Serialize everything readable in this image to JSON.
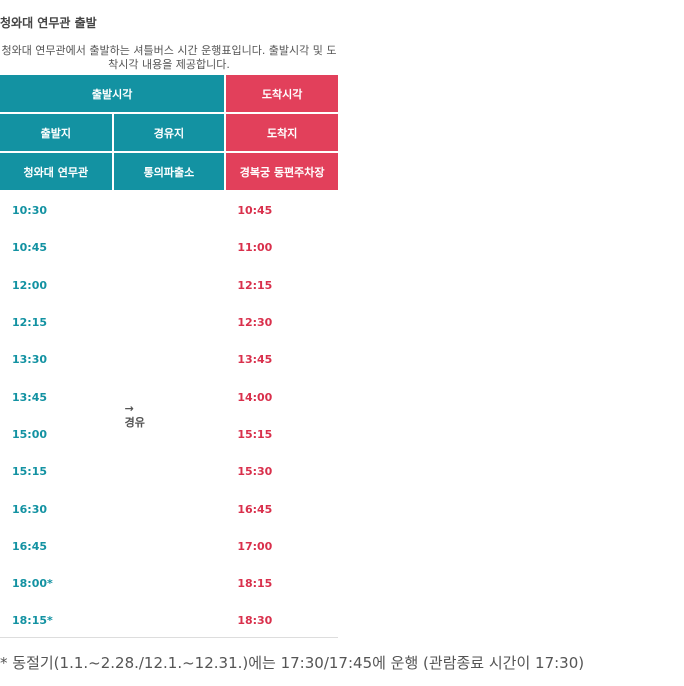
{
  "section_title": "청와대 연무관 출발",
  "caption": "청와대 연무관에서 출발하는 셔틀버스 시간 운행표입니다. 출발시각 및 도착시각 내용을 제공합니다.",
  "header_row1": {
    "departure_time": "출발시각",
    "arrival_time": "도착시각"
  },
  "header_row2": {
    "origin": "출발지",
    "via": "경유지",
    "destination": "도착지"
  },
  "header_row3": {
    "origin_name": "청와대 연무관",
    "via_name": "통의파출소",
    "destination_name": "경복궁 동편주차장"
  },
  "via_note": {
    "arrow": "→",
    "text": "경유"
  },
  "rows": [
    {
      "dep": "10:30",
      "arr": "10:45"
    },
    {
      "dep": "10:45",
      "arr": "11:00"
    },
    {
      "dep": "12:00",
      "arr": "12:15"
    },
    {
      "dep": "12:15",
      "arr": "12:30"
    },
    {
      "dep": "13:30",
      "arr": "13:45"
    },
    {
      "dep": "13:45",
      "arr": "14:00"
    },
    {
      "dep": "15:00",
      "arr": "15:15"
    },
    {
      "dep": "15:15",
      "arr": "15:30"
    },
    {
      "dep": "16:30",
      "arr": "16:45"
    },
    {
      "dep": "16:45",
      "arr": "17:00"
    },
    {
      "dep": "18:00*",
      "arr": "18:15"
    },
    {
      "dep": "18:15*",
      "arr": "18:30"
    }
  ],
  "footnote": "* 동절기(1.1.~2.28./12.1.~12.31.)에는 17:30/17:45에 운행 (관람종료 시간이 17:30)",
  "colors": {
    "teal": "#1392a2",
    "red": "#e2405b"
  }
}
